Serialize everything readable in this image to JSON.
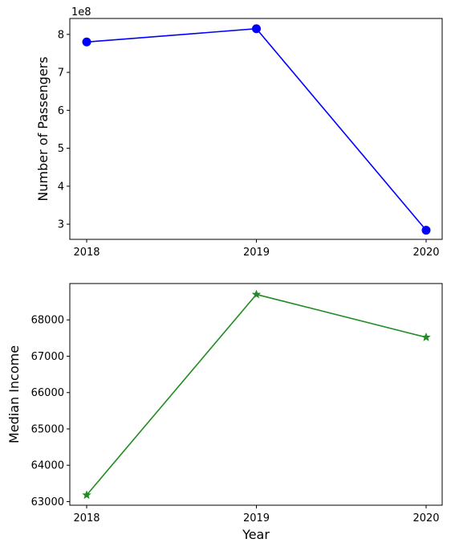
{
  "chart_data": [
    {
      "type": "line",
      "x": [
        2018,
        2019,
        2020
      ],
      "xticks": [
        "2018",
        "2019",
        "2020"
      ],
      "values": [
        7.8,
        8.15,
        2.84
      ],
      "ylabel": "Number of Passengers",
      "xlabel": "",
      "offset_label": "1e8",
      "yticks": [
        3,
        4,
        5,
        6,
        7,
        8
      ],
      "ytick_labels": [
        "3",
        "4",
        "5",
        "6",
        "7",
        "8"
      ],
      "ylim": [
        2.6,
        8.42
      ],
      "color": "#0000ff",
      "marker": "circle",
      "grid": false
    },
    {
      "type": "line",
      "x": [
        2018,
        2019,
        2020
      ],
      "xticks": [
        "2018",
        "2019",
        "2020"
      ],
      "values": [
        63180,
        68700,
        67520
      ],
      "ylabel": "Median Income",
      "xlabel": "Year",
      "yticks": [
        63000,
        64000,
        65000,
        66000,
        67000,
        68000
      ],
      "ytick_labels": [
        "63000",
        "64000",
        "65000",
        "66000",
        "67000",
        "68000"
      ],
      "ylim": [
        62900,
        69000
      ],
      "color": "#228b22",
      "marker": "star",
      "grid": false
    }
  ]
}
